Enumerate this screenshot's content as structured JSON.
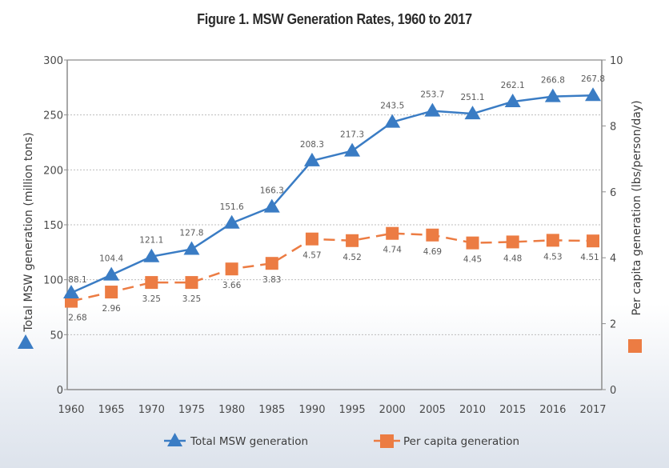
{
  "chart_data": {
    "type": "line",
    "title": "Figure 1. MSW Generation Rates, 1960 to 2017",
    "categories": [
      "1960",
      "1965",
      "1970",
      "1975",
      "1980",
      "1985",
      "1990",
      "1995",
      "2000",
      "2005",
      "2010",
      "2015",
      "2016",
      "2017"
    ],
    "series": [
      {
        "name": "Total MSW generation",
        "axis": "left",
        "marker": "triangle",
        "line_style": "solid",
        "color": "#3a7cc4",
        "values": [
          88.1,
          104.4,
          121.1,
          127.8,
          151.6,
          166.3,
          208.3,
          217.3,
          243.5,
          253.7,
          251.1,
          262.1,
          266.8,
          267.8
        ],
        "labels": [
          "88.1",
          "104.4",
          "121.1",
          "127.8",
          "151.6",
          "166.3",
          "208.3",
          "217.3",
          "243.5",
          "253.7",
          "251.1",
          "262.1",
          "266.8",
          "267.8"
        ]
      },
      {
        "name": "Per capita generation",
        "axis": "right",
        "marker": "square",
        "line_style": "dashed",
        "color": "#ec7c43",
        "values": [
          2.68,
          2.96,
          3.25,
          3.25,
          3.66,
          3.83,
          4.57,
          4.52,
          4.74,
          4.69,
          4.45,
          4.48,
          4.53,
          4.51
        ],
        "labels": [
          "2.68",
          "2.96",
          "3.25",
          "3.25",
          "3.66",
          "3.83",
          "4.57",
          "4.52",
          "4.74",
          "4.69",
          "4.45",
          "4.48",
          "4.53",
          "4.51"
        ]
      }
    ],
    "y_left": {
      "label": "Total MSW generation (million tons)",
      "ylim": [
        0,
        300
      ],
      "ticks": [
        0,
        50,
        100,
        150,
        200,
        250,
        300
      ]
    },
    "y_right": {
      "label": "Per capita generation (lbs/person/day)",
      "ylim": [
        0,
        10
      ],
      "ticks": [
        0,
        2,
        4,
        6,
        8,
        10
      ]
    },
    "xlabel": "",
    "grid": "horizontal dotted",
    "legend": {
      "placement": "bottom-center",
      "entries": [
        "Total MSW generation",
        "Per capita generation"
      ]
    }
  }
}
